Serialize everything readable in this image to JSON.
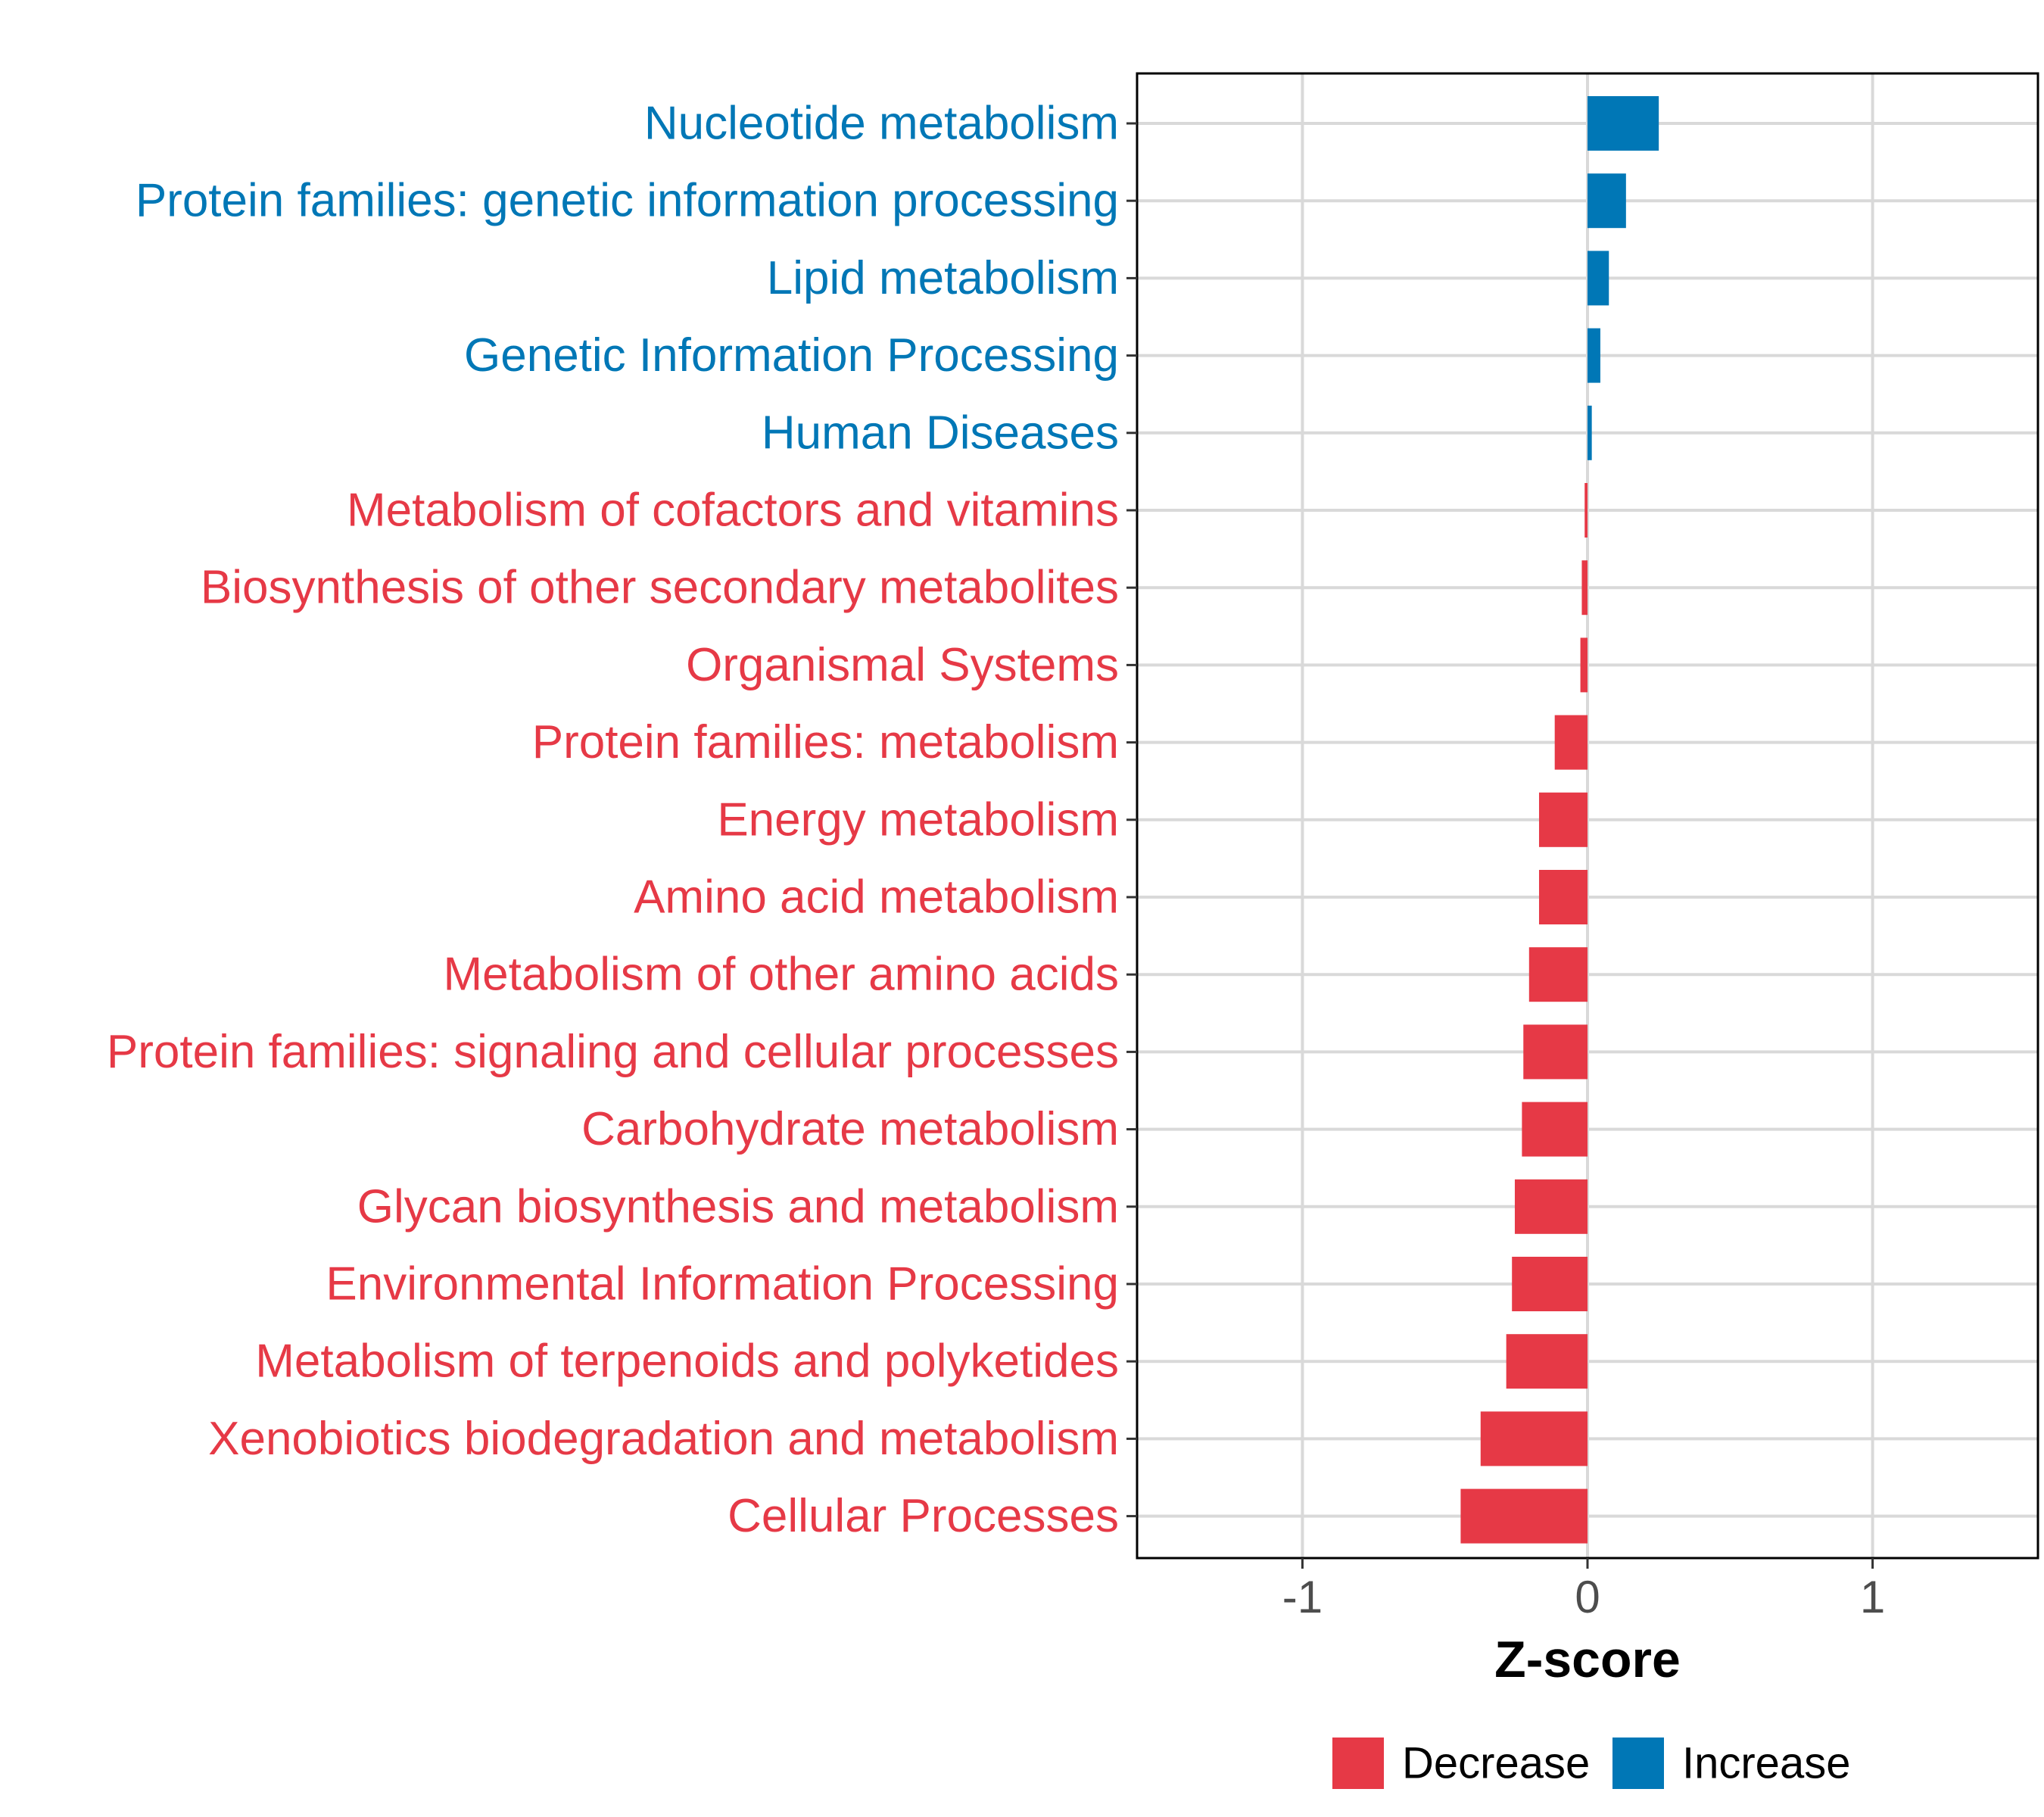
{
  "chart_data": {
    "type": "bar",
    "orientation": "horizontal",
    "title": "",
    "xlabel": "Z-score",
    "ylabel": "",
    "xlim": [
      -1.58,
      1.58
    ],
    "xticks": [
      -1,
      0,
      1
    ],
    "xtick_labels": [
      "-1",
      "0",
      "1"
    ],
    "grid": true,
    "categories": [
      "Nucleotide metabolism",
      "Protein families: genetic information processing",
      "Lipid metabolism",
      "Genetic Information Processing",
      "Human Diseases",
      "Metabolism of cofactors and vitamins",
      "Biosynthesis of other secondary metabolites",
      "Organismal Systems",
      "Protein families: metabolism",
      "Energy metabolism",
      "Amino acid metabolism",
      "Metabolism of other amino acids",
      "Protein families: signaling and cellular processes",
      "Carbohydrate metabolism",
      "Glycan biosynthesis and metabolism",
      "Environmental Information Processing",
      "Metabolism of terpenoids and polyketides",
      "Xenobiotics biodegradation and metabolism",
      "Cellular Processes"
    ],
    "values": [
      0.25,
      0.135,
      0.075,
      0.045,
      0.015,
      -0.01,
      -0.02,
      -0.025,
      -0.115,
      -0.17,
      -0.17,
      -0.205,
      -0.225,
      -0.23,
      -0.255,
      -0.265,
      -0.285,
      -0.375,
      -0.445
    ],
    "legend": {
      "position": "bottom",
      "entries": [
        {
          "name": "Decrease",
          "color": "#E63946"
        },
        {
          "name": "Increase",
          "color": "#0077B6"
        }
      ]
    },
    "colors": {
      "decrease": "#E63946",
      "increase": "#0077B6",
      "grid": "#d9d9d9",
      "panel_border": "#000000"
    }
  }
}
